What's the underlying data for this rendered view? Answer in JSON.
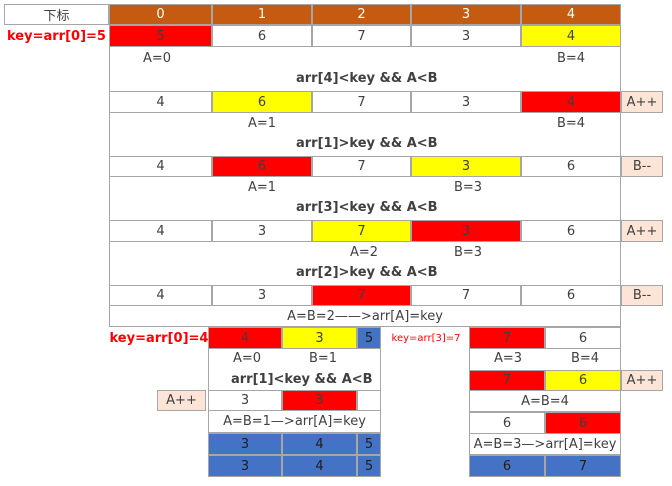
{
  "header": {
    "label": "下标",
    "indices": [
      "0",
      "1",
      "2",
      "3",
      "4"
    ]
  },
  "step1": {
    "key_label": "key=arr[0]=5",
    "values": [
      "5",
      "6",
      "7",
      "3",
      "4"
    ],
    "a_label": "A=0",
    "b_label": "B=4",
    "condition": "arr[4]<key && A<B"
  },
  "step2": {
    "values": [
      "4",
      "6",
      "7",
      "3",
      "4"
    ],
    "action": "A++",
    "a_label": "A=1",
    "b_label": "B=4",
    "condition": "arr[1]>key && A<B"
  },
  "step3": {
    "values": [
      "4",
      "6",
      "7",
      "3",
      "6"
    ],
    "action": "B--",
    "a_label": "A=1",
    "b_label": "B=3",
    "condition": "arr[3]<key && A<B"
  },
  "step4": {
    "values": [
      "4",
      "3",
      "7",
      "3",
      "6"
    ],
    "action": "A++",
    "a_label": "A=2",
    "b_label": "B=3",
    "condition": "arr[2]>key && A<B"
  },
  "step5": {
    "values": [
      "4",
      "3",
      "7",
      "7",
      "6"
    ],
    "action": "B--",
    "note": "A=B=2——>arr[A]=key"
  },
  "left": {
    "key_label": "key=arr[0]=4",
    "values": [
      "4",
      "3"
    ],
    "pivot": "5",
    "a_label": "A=0",
    "b_label": "B=1",
    "condition": "arr[1]<key && A<B",
    "action": "A++",
    "step_values": [
      "3",
      "3"
    ],
    "note": "A=B=1—>arr[A]=key",
    "result1": [
      "3",
      "4",
      "5"
    ],
    "result2": [
      "3",
      "4",
      "5"
    ]
  },
  "right": {
    "key_label": "key=arr[3]=7",
    "values": [
      "7",
      "6"
    ],
    "a_label": "A=3",
    "b_label": "B=4",
    "step_values": [
      "7",
      "6"
    ],
    "action": "A++",
    "note1": "A=B=4",
    "step2_values": [
      "6",
      "6"
    ],
    "note2": "A=B=3—>arr[A]=key",
    "result": [
      "6",
      "7"
    ]
  },
  "colors": {
    "header": "#c55a11",
    "red": "#ff0000",
    "yellow": "#ffff00",
    "blue": "#4472c4",
    "peach": "#fce4d6"
  }
}
